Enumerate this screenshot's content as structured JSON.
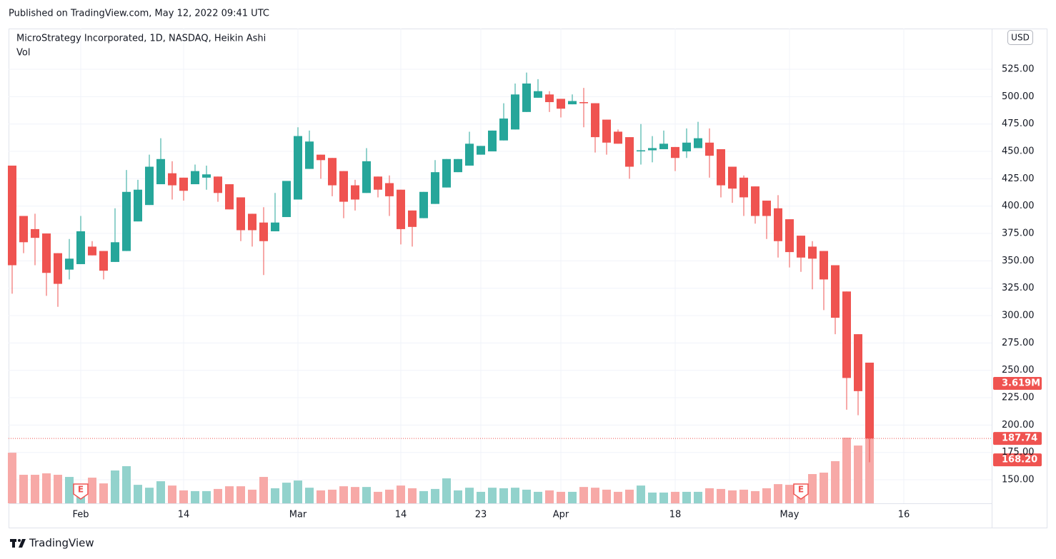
{
  "header": "Published on TradingView.com, May 12, 2022 09:41 UTC",
  "footer": "TradingView",
  "chart_data": {
    "type": "candlestick",
    "title": "MicroStrategy Incorporated, 1D, NASDAQ, Heikin Ashi",
    "volume_title": "Vol",
    "currency": "USD",
    "up_color": "#26a69a",
    "down_color": "#ef5350",
    "volume_up_color": "#92d2cc",
    "volume_down_color": "#f7a9a7",
    "grid": true,
    "xlim": [
      -0.3125,
      85.6875
    ],
    "xticks": [
      {
        "value": 6,
        "label": "Feb"
      },
      {
        "value": 15,
        "label": "14"
      },
      {
        "value": 25,
        "label": "Mar"
      },
      {
        "value": 34,
        "label": "14"
      },
      {
        "value": 41,
        "label": "23"
      },
      {
        "value": 48,
        "label": "Apr"
      },
      {
        "value": 58,
        "label": "18"
      },
      {
        "value": 68,
        "label": "May"
      },
      {
        "value": 78,
        "label": "16"
      }
    ],
    "ylim": [
      128.5,
      562.2
    ],
    "yticks": [
      {
        "value": 150,
        "label": "150.00"
      },
      {
        "value": 175,
        "label": "175.00"
      },
      {
        "value": 200,
        "label": "200.00"
      },
      {
        "value": 225,
        "label": "225.00"
      },
      {
        "value": 250,
        "label": "250.00"
      },
      {
        "value": 275,
        "label": "275.00"
      },
      {
        "value": 300,
        "label": "300.00"
      },
      {
        "value": 325,
        "label": "325.00"
      },
      {
        "value": 350,
        "label": "350.00"
      },
      {
        "value": 375,
        "label": "375.00"
      },
      {
        "value": 400,
        "label": "400.00"
      },
      {
        "value": 425,
        "label": "425.00"
      },
      {
        "value": 450,
        "label": "450.00"
      },
      {
        "value": 475,
        "label": "475.00"
      },
      {
        "value": 500,
        "label": "500.00"
      },
      {
        "value": 525,
        "label": "525.00"
      }
    ],
    "open": [
      437,
      391,
      379,
      375,
      357,
      342,
      347,
      363,
      359,
      349,
      359,
      386,
      401,
      420,
      430,
      426,
      420,
      426,
      427,
      420,
      408,
      393,
      385,
      377,
      390,
      406,
      434,
      447,
      444,
      432,
      419,
      412,
      427,
      421,
      415,
      396,
      389,
      402,
      417,
      431,
      437,
      447,
      450,
      460,
      470,
      486,
      499,
      502,
      498,
      493,
      495,
      494,
      479,
      468,
      463,
      450,
      451,
      452,
      454,
      450,
      453,
      458,
      452,
      436,
      426,
      418,
      405,
      398,
      388,
      373,
      363,
      359,
      346,
      322,
      283,
      257
    ],
    "high": [
      437,
      391,
      393,
      375,
      357,
      370,
      391,
      368,
      359,
      398,
      433,
      424,
      447,
      462,
      441,
      426,
      438,
      437,
      427,
      420,
      408,
      393,
      399,
      412,
      423,
      472,
      469,
      447,
      444,
      432,
      424,
      453,
      427,
      428,
      415,
      396,
      413,
      442,
      443,
      443,
      468,
      455,
      469,
      494,
      512,
      522,
      516,
      505,
      498,
      502,
      508,
      494,
      479,
      470,
      463,
      475,
      464,
      469,
      454,
      471,
      477,
      471,
      452,
      436,
      428,
      418,
      405,
      410,
      388,
      373,
      368,
      359,
      346,
      322,
      283,
      257
    ],
    "low": [
      320,
      357,
      346,
      318,
      308,
      333,
      347,
      355,
      333,
      349,
      359,
      386,
      401,
      420,
      406,
      405,
      420,
      415,
      404,
      397,
      368,
      363,
      337,
      377,
      390,
      406,
      434,
      425,
      409,
      389,
      396,
      412,
      408,
      391,
      365,
      363,
      389,
      402,
      417,
      431,
      437,
      447,
      450,
      460,
      470,
      486,
      499,
      486,
      481,
      493,
      472,
      449,
      447,
      457,
      425,
      438,
      440,
      452,
      432,
      444,
      453,
      426,
      408,
      403,
      391,
      384,
      370,
      353,
      344,
      340,
      324,
      305,
      283,
      214,
      209,
      166
    ],
    "close": [
      346,
      367,
      371,
      339,
      329,
      352,
      377,
      355,
      341,
      367,
      413,
      415,
      436,
      443,
      419,
      414,
      432,
      429,
      412,
      397,
      378,
      378,
      368,
      385,
      423,
      464,
      459,
      442,
      419,
      404,
      406,
      441,
      415,
      409,
      379,
      381,
      413,
      431,
      443,
      443,
      457,
      455,
      469,
      480,
      502,
      512,
      505,
      495,
      489,
      496,
      494,
      463,
      458,
      457,
      436,
      451,
      453,
      457,
      444,
      458,
      462,
      446,
      419,
      416,
      408,
      391,
      391,
      368,
      358,
      353,
      352,
      333,
      298,
      243,
      231,
      187.74
    ],
    "volume": [
      2820000,
      1590000,
      1590000,
      1670000,
      1590000,
      1470000,
      700000,
      1430000,
      1110000,
      1830000,
      2070000,
      1030000,
      870000,
      1230000,
      990000,
      720000,
      680000,
      680000,
      800000,
      950000,
      950000,
      760000,
      1470000,
      840000,
      1150000,
      1270000,
      870000,
      720000,
      760000,
      950000,
      910000,
      910000,
      640000,
      760000,
      990000,
      840000,
      680000,
      800000,
      1390000,
      720000,
      870000,
      640000,
      870000,
      840000,
      870000,
      760000,
      640000,
      720000,
      640000,
      640000,
      910000,
      870000,
      760000,
      640000,
      760000,
      990000,
      600000,
      600000,
      640000,
      640000,
      640000,
      840000,
      800000,
      720000,
      760000,
      680000,
      840000,
      1070000,
      1030000,
      760000,
      1630000,
      1710000,
      2350000,
      3660000,
      3220000,
      3619000
    ],
    "volume_label": {
      "value": 3619000,
      "label": "3.619M"
    },
    "current_price": 187.74,
    "last_price": {
      "value": 168.2,
      "label": "168.20"
    },
    "earnings": [
      {
        "x": 6,
        "label": "E"
      },
      {
        "x": 69,
        "label": "E"
      }
    ]
  }
}
